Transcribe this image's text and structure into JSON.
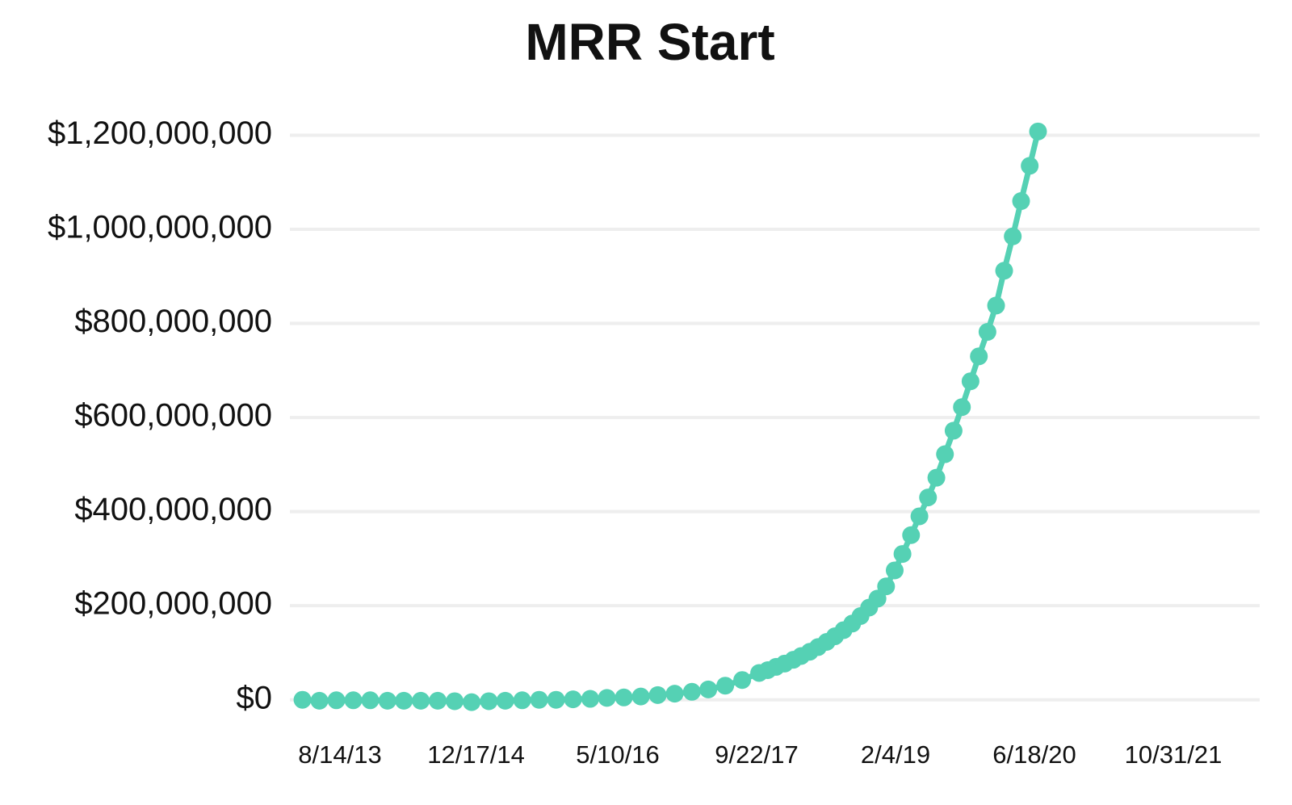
{
  "chart_data": {
    "type": "line",
    "title": "MRR Start",
    "x": [
      "4/1/13",
      "6/1/13",
      "8/1/13",
      "10/1/13",
      "12/1/13",
      "2/1/14",
      "4/1/14",
      "6/1/14",
      "8/1/14",
      "10/1/14",
      "12/1/14",
      "2/1/15",
      "4/1/15",
      "6/1/15",
      "8/1/15",
      "10/1/15",
      "12/1/15",
      "2/1/16",
      "4/1/16",
      "6/1/16",
      "8/1/16",
      "10/1/16",
      "12/1/16",
      "2/1/17",
      "4/1/17",
      "6/1/17",
      "8/1/17",
      "10/1/17",
      "11/1/17",
      "12/1/17",
      "1/1/18",
      "2/1/18",
      "3/1/18",
      "4/1/18",
      "5/1/18",
      "6/1/18",
      "7/1/18",
      "8/1/18",
      "9/1/18",
      "10/1/18",
      "11/1/18",
      "12/1/18",
      "1/1/19",
      "2/1/19",
      "3/1/19",
      "4/1/19",
      "5/1/19",
      "6/1/19",
      "7/1/19",
      "8/1/19",
      "9/1/19",
      "10/1/19",
      "11/1/19",
      "12/1/19",
      "1/1/20",
      "2/1/20",
      "3/1/20",
      "4/1/20",
      "5/1/20",
      "6/1/20",
      "7/1/20"
    ],
    "series": [
      {
        "name": "MRR Start",
        "color": "#55d1b4",
        "values": [
          0,
          -2000000,
          -1000000,
          -1000000,
          -1000000,
          -2000000,
          -2000000,
          -2000000,
          -2000000,
          -3000000,
          -5000000,
          -3000000,
          -2000000,
          -1000000,
          0,
          0,
          1000000,
          2000000,
          4000000,
          5000000,
          7000000,
          10000000,
          13000000,
          17000000,
          22000000,
          30000000,
          42000000,
          57000000,
          63000000,
          70000000,
          77000000,
          85000000,
          93000000,
          102000000,
          112000000,
          123000000,
          135000000,
          148000000,
          162000000,
          178000000,
          196000000,
          215000000,
          241000000,
          275000000,
          310000000,
          350000000,
          390000000,
          430000000,
          472000000,
          522000000,
          572000000,
          622000000,
          677000000,
          730000000,
          782000000,
          838000000,
          912000000,
          985000000,
          1060000000,
          1135000000,
          1208000000
        ]
      }
    ],
    "xlim": [
      "3/10/13",
      "9/7/22"
    ],
    "xticks": [
      "8/14/13",
      "12/17/14",
      "5/10/16",
      "9/22/17",
      "2/4/19",
      "6/18/20",
      "10/31/21"
    ],
    "ylim": [
      -40000000,
      1230000000
    ],
    "yticks": [
      {
        "value": 0,
        "label": "$0"
      },
      {
        "value": 200000000,
        "label": "$200,000,000"
      },
      {
        "value": 400000000,
        "label": "$400,000,000"
      },
      {
        "value": 600000000,
        "label": "$600,000,000"
      },
      {
        "value": 800000000,
        "label": "$800,000,000"
      },
      {
        "value": 1000000000,
        "label": "$1,000,000,000"
      },
      {
        "value": 1200000000,
        "label": "$1,200,000,000"
      }
    ],
    "grid": true
  }
}
